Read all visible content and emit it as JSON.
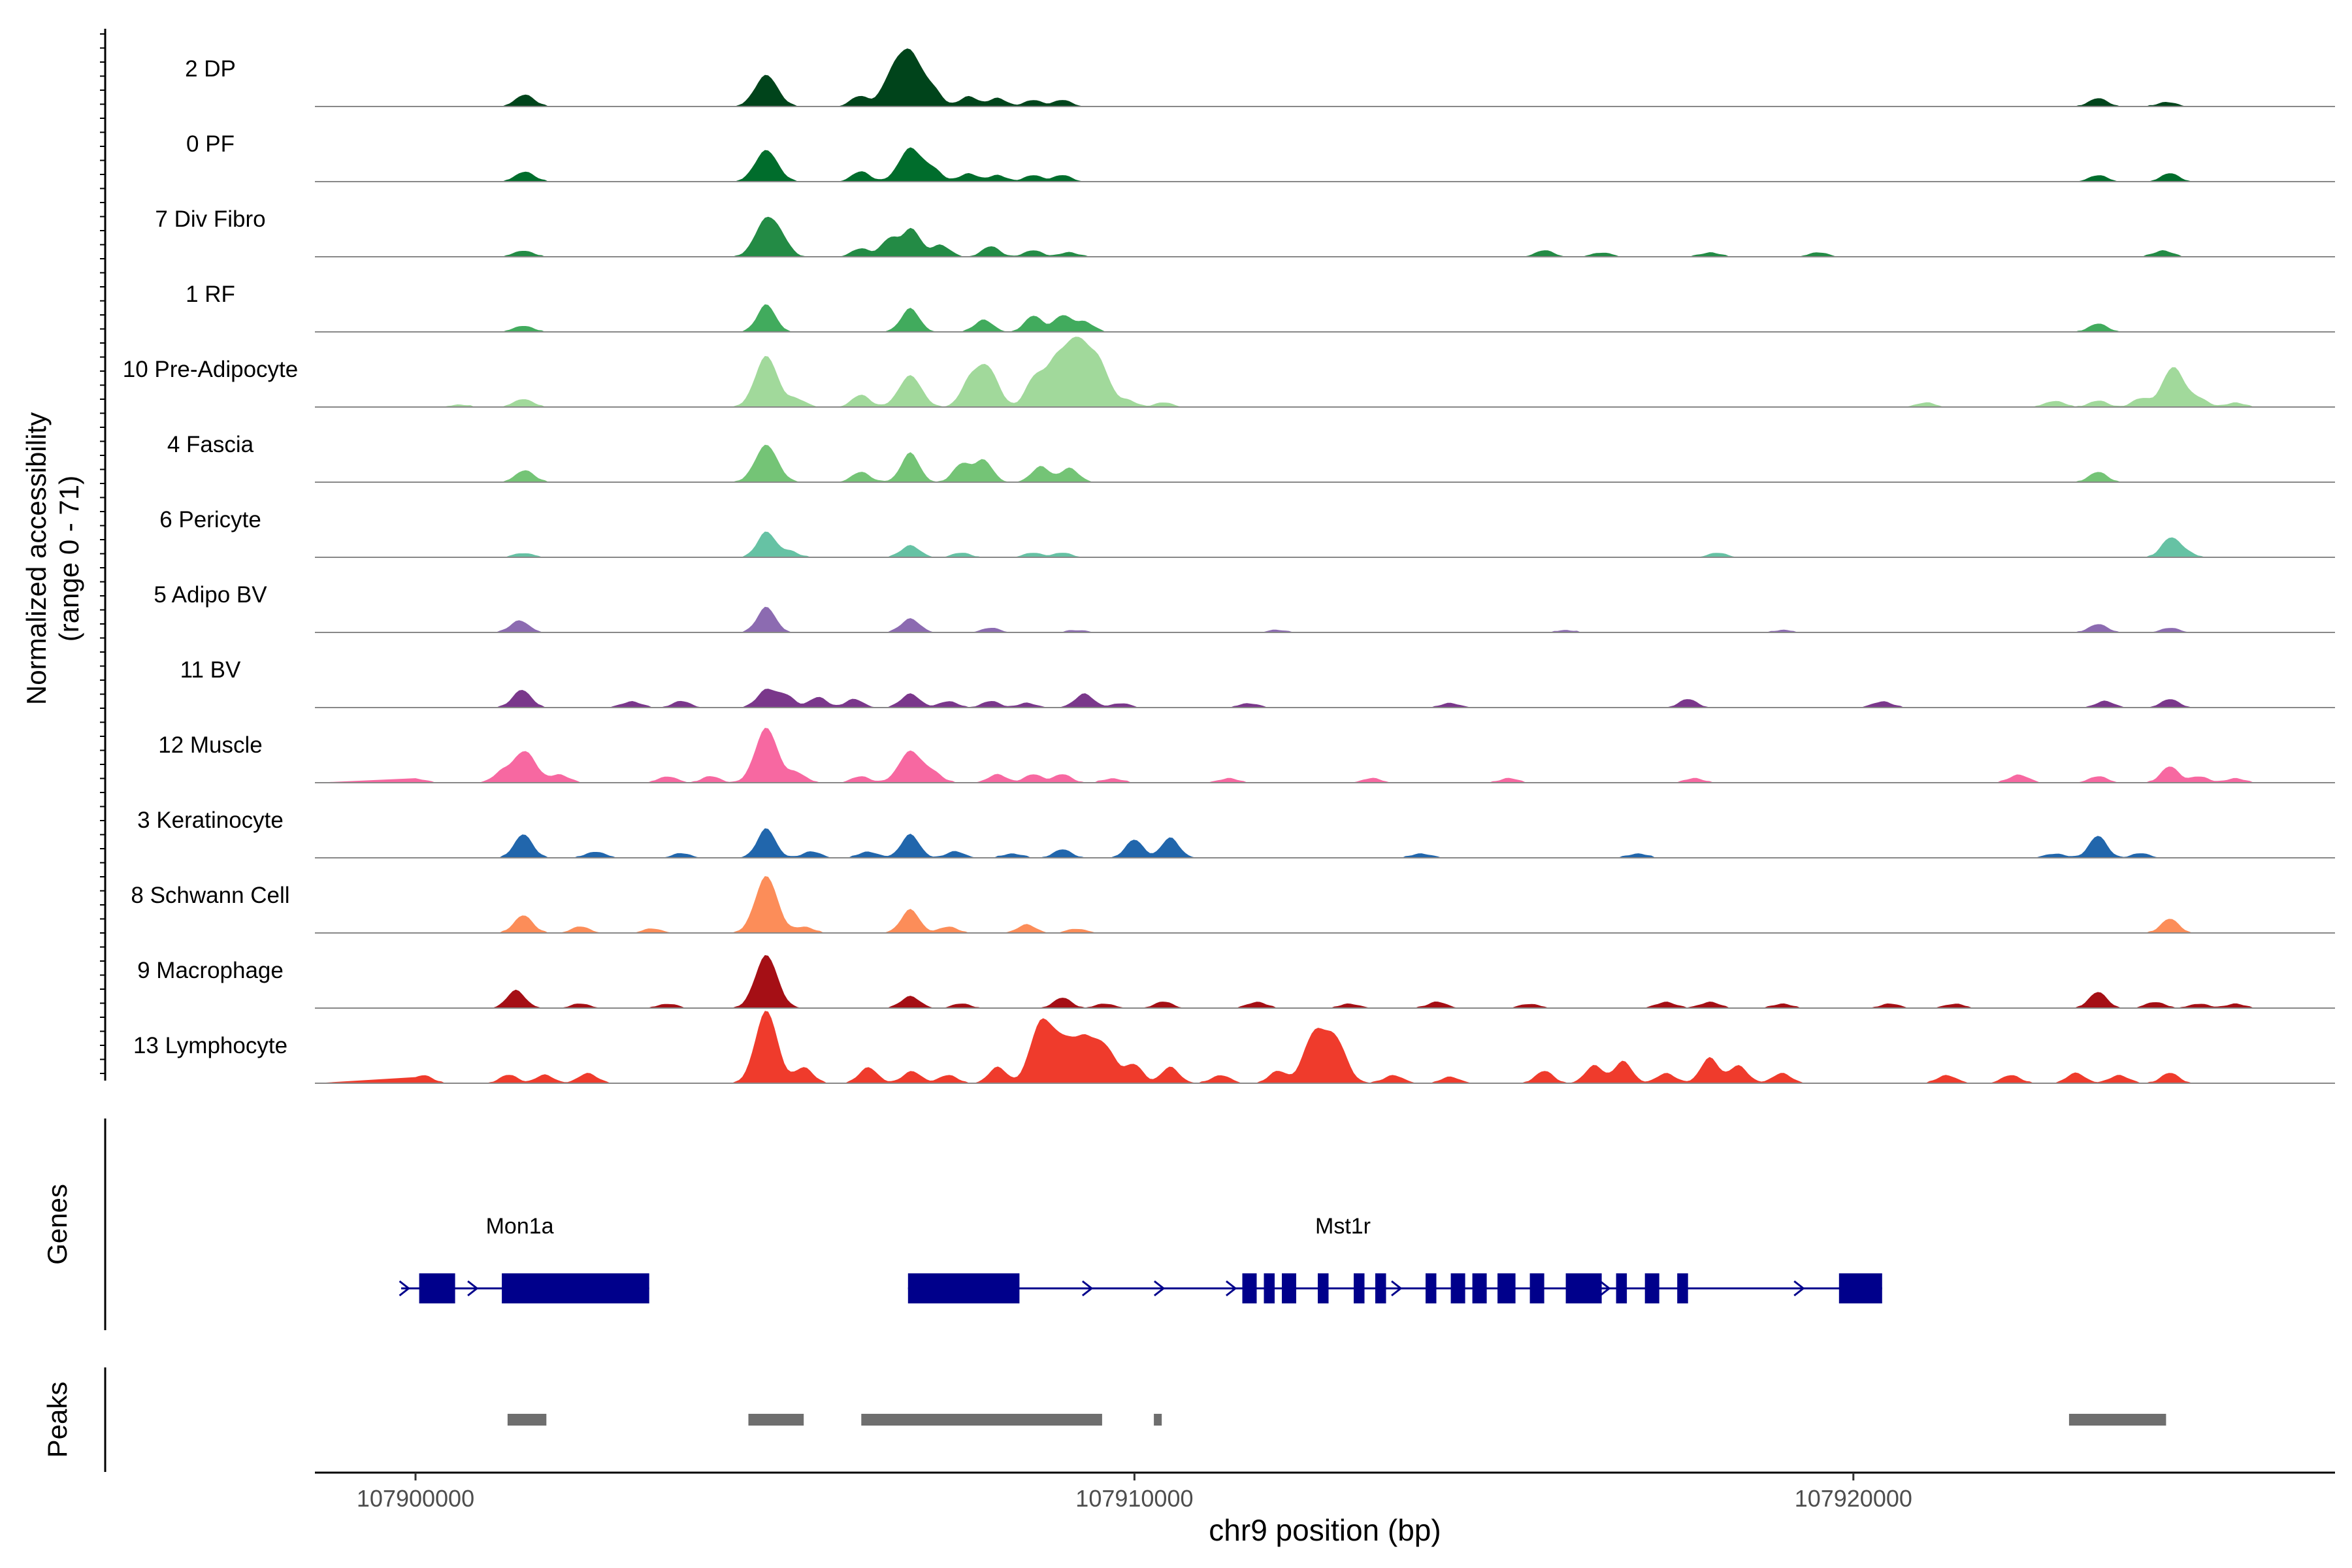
{
  "chart_data": {
    "type": "area",
    "title": "",
    "ylabel": "Normalized accessibility",
    "ylabel_range": "(range 0 - 71)",
    "ylim": [
      0,
      71
    ],
    "xlabel": "chr9 position (bp)",
    "xlim": [
      107898600,
      107926700
    ],
    "x_ticks": [
      "107900000",
      "107910000",
      "107920000"
    ],
    "x_tick_values": [
      107900000,
      107910000,
      107920000
    ],
    "baseline_color": "#888888",
    "tracks": [
      {
        "name": "2 DP",
        "color": "#00441b",
        "peaks": [
          [
            107901520,
            6
          ],
          [
            107904880,
            16
          ],
          [
            107906180,
            5
          ],
          [
            107906650,
            16
          ],
          [
            107906900,
            24
          ],
          [
            107907200,
            8
          ],
          [
            107907700,
            5
          ],
          [
            107908100,
            4
          ],
          [
            107908600,
            3
          ],
          [
            107909000,
            3
          ],
          [
            107923400,
            4
          ],
          [
            107924350,
            2
          ]
        ]
      },
      {
        "name": "0 PF",
        "color": "#006d2c",
        "peaks": [
          [
            107901520,
            5
          ],
          [
            107904880,
            16
          ],
          [
            107906200,
            5
          ],
          [
            107906880,
            17
          ],
          [
            107907200,
            6
          ],
          [
            107907700,
            4
          ],
          [
            107908100,
            3
          ],
          [
            107908600,
            3
          ],
          [
            107909000,
            3
          ],
          [
            107923400,
            3
          ],
          [
            107924400,
            4
          ]
        ]
      },
      {
        "name": "7 Div Fibro",
        "color": "#238b45",
        "peaks": [
          [
            107901500,
            3
          ],
          [
            107904880,
            19
          ],
          [
            107905100,
            6
          ],
          [
            107906200,
            4
          ],
          [
            107906600,
            9
          ],
          [
            107906900,
            14
          ],
          [
            107907300,
            6
          ],
          [
            107908000,
            5
          ],
          [
            107908600,
            3
          ],
          [
            107909100,
            2
          ],
          [
            107915700,
            3
          ],
          [
            107916500,
            2
          ],
          [
            107918000,
            2
          ],
          [
            107919500,
            2
          ],
          [
            107924300,
            3
          ]
        ]
      },
      {
        "name": "1 RF",
        "color": "#41ab5d",
        "peaks": [
          [
            107901500,
            3
          ],
          [
            107904880,
            14
          ],
          [
            107906880,
            12
          ],
          [
            107907900,
            6
          ],
          [
            107908600,
            8
          ],
          [
            107909000,
            8
          ],
          [
            107909300,
            5
          ],
          [
            107923400,
            4
          ]
        ]
      },
      {
        "name": "10 Pre-Adipocyte",
        "color": "#a1d99b",
        "peaks": [
          [
            107900600,
            1
          ],
          [
            107901500,
            4
          ],
          [
            107904880,
            26
          ],
          [
            107905300,
            4
          ],
          [
            107906200,
            6
          ],
          [
            107906880,
            16
          ],
          [
            107907700,
            11
          ],
          [
            107907950,
            20
          ],
          [
            107908600,
            13
          ],
          [
            107908900,
            22
          ],
          [
            107909200,
            30
          ],
          [
            107909500,
            22
          ],
          [
            107909900,
            3
          ],
          [
            107910400,
            2
          ],
          [
            107921000,
            2
          ],
          [
            107922800,
            3
          ],
          [
            107923400,
            3
          ],
          [
            107924000,
            4
          ],
          [
            107924450,
            20
          ],
          [
            107924800,
            4
          ],
          [
            107925300,
            2
          ]
        ]
      },
      {
        "name": "4 Fascia",
        "color": "#74c476",
        "peaks": [
          [
            107901520,
            6
          ],
          [
            107904880,
            19
          ],
          [
            107906200,
            5
          ],
          [
            107906880,
            15
          ],
          [
            107907600,
            9
          ],
          [
            107907900,
            11
          ],
          [
            107908700,
            8
          ],
          [
            107909100,
            7
          ],
          [
            107923400,
            5
          ]
        ]
      },
      {
        "name": "6 Pericyte",
        "color": "#66c2a4",
        "peaks": [
          [
            107901500,
            2
          ],
          [
            107904880,
            13
          ],
          [
            107905200,
            3
          ],
          [
            107906880,
            6
          ],
          [
            107907600,
            2
          ],
          [
            107908600,
            2
          ],
          [
            107909000,
            2
          ],
          [
            107918100,
            2
          ],
          [
            107924400,
            9
          ],
          [
            107924600,
            3
          ]
        ]
      },
      {
        "name": "5 Adipo BV",
        "color": "#8c6bb1",
        "peaks": [
          [
            107901450,
            6
          ],
          [
            107904880,
            13
          ],
          [
            107906880,
            7
          ],
          [
            107908000,
            2
          ],
          [
            107909200,
            1
          ],
          [
            107912000,
            1
          ],
          [
            107916000,
            1
          ],
          [
            107919000,
            1
          ],
          [
            107923400,
            4
          ],
          [
            107924400,
            2
          ]
        ]
      },
      {
        "name": "11 BV",
        "color": "#7a378b",
        "peaks": [
          [
            107901480,
            9
          ],
          [
            107903000,
            3
          ],
          [
            107903700,
            3
          ],
          [
            107904880,
            9
          ],
          [
            107905150,
            6
          ],
          [
            107905600,
            5
          ],
          [
            107906100,
            4
          ],
          [
            107906880,
            7
          ],
          [
            107907400,
            3
          ],
          [
            107908000,
            3
          ],
          [
            107908500,
            2
          ],
          [
            107909300,
            7
          ],
          [
            107909800,
            2
          ],
          [
            107911600,
            2
          ],
          [
            107914400,
            2
          ],
          [
            107917700,
            4
          ],
          [
            107920400,
            3
          ],
          [
            107923500,
            3
          ],
          [
            107924400,
            4
          ]
        ]
      },
      {
        "name": "12 Muscle",
        "color": "#f768a1",
        "peaks": [
          [
            107900000,
            2
          ],
          [
            107901200,
            5
          ],
          [
            107901520,
            16
          ],
          [
            107902000,
            4
          ],
          [
            107903500,
            3
          ],
          [
            107904100,
            3
          ],
          [
            107904880,
            28
          ],
          [
            107905300,
            5
          ],
          [
            107906200,
            3
          ],
          [
            107906880,
            16
          ],
          [
            107907200,
            5
          ],
          [
            107908100,
            4
          ],
          [
            107908600,
            4
          ],
          [
            107909000,
            4
          ],
          [
            107909700,
            2
          ],
          [
            107911300,
            2
          ],
          [
            107913300,
            2
          ],
          [
            107915200,
            2
          ],
          [
            107917800,
            2
          ],
          [
            107922300,
            4
          ],
          [
            107923400,
            3
          ],
          [
            107924400,
            8
          ],
          [
            107924800,
            3
          ],
          [
            107925300,
            2
          ]
        ]
      },
      {
        "name": "3 Keratinocyte",
        "color": "#2166ac",
        "peaks": [
          [
            107901500,
            12
          ],
          [
            107902500,
            3
          ],
          [
            107903700,
            2
          ],
          [
            107904880,
            15
          ],
          [
            107905500,
            3
          ],
          [
            107906300,
            3
          ],
          [
            107906880,
            12
          ],
          [
            107907500,
            3
          ],
          [
            107908300,
            2
          ],
          [
            107909000,
            4
          ],
          [
            107910000,
            9
          ],
          [
            107910500,
            10
          ],
          [
            107914000,
            2
          ],
          [
            107917000,
            2
          ],
          [
            107922800,
            2
          ],
          [
            107923400,
            11
          ],
          [
            107924000,
            2
          ]
        ]
      },
      {
        "name": "8 Schwann Cell",
        "color": "#fc8d59",
        "peaks": [
          [
            107901500,
            9
          ],
          [
            107902300,
            3
          ],
          [
            107903300,
            2
          ],
          [
            107904880,
            29
          ],
          [
            107905400,
            3
          ],
          [
            107906880,
            12
          ],
          [
            107907400,
            3
          ],
          [
            107908500,
            4
          ],
          [
            107909200,
            2
          ],
          [
            107924400,
            7
          ]
        ]
      },
      {
        "name": "9 Macrophage",
        "color": "#a50f15",
        "peaks": [
          [
            107901400,
            9
          ],
          [
            107902300,
            2
          ],
          [
            107903500,
            2
          ],
          [
            107904880,
            27
          ],
          [
            107906880,
            6
          ],
          [
            107907600,
            2
          ],
          [
            107909000,
            5
          ],
          [
            107909600,
            2
          ],
          [
            107910400,
            3
          ],
          [
            107911700,
            3
          ],
          [
            107913000,
            2
          ],
          [
            107914200,
            3
          ],
          [
            107915500,
            2
          ],
          [
            107917400,
            3
          ],
          [
            107918000,
            3
          ],
          [
            107919000,
            2
          ],
          [
            107920500,
            2
          ],
          [
            107921400,
            2
          ],
          [
            107923400,
            8
          ],
          [
            107924200,
            3
          ],
          [
            107924800,
            2
          ],
          [
            107925300,
            2
          ]
        ]
      },
      {
        "name": "13 Lymphocyte",
        "color": "#ef3b2c",
        "peaks": [
          [
            107900100,
            4
          ],
          [
            107901300,
            4
          ],
          [
            107901800,
            4
          ],
          [
            107902400,
            5
          ],
          [
            107904880,
            37
          ],
          [
            107905400,
            8
          ],
          [
            107906300,
            8
          ],
          [
            107906900,
            6
          ],
          [
            107907400,
            4
          ],
          [
            107908100,
            8
          ],
          [
            107908700,
            30
          ],
          [
            107909000,
            18
          ],
          [
            107909300,
            20
          ],
          [
            107909600,
            17
          ],
          [
            107910000,
            9
          ],
          [
            107910500,
            8
          ],
          [
            107911200,
            4
          ],
          [
            107912000,
            6
          ],
          [
            107912500,
            24
          ],
          [
            107912800,
            21
          ],
          [
            107913600,
            4
          ],
          [
            107914400,
            3
          ],
          [
            107915700,
            6
          ],
          [
            107916400,
            9
          ],
          [
            107916800,
            11
          ],
          [
            107917400,
            5
          ],
          [
            107918000,
            13
          ],
          [
            107918400,
            9
          ],
          [
            107919000,
            5
          ],
          [
            107921300,
            4
          ],
          [
            107922200,
            4
          ],
          [
            107923100,
            5
          ],
          [
            107923700,
            4
          ],
          [
            107924400,
            5
          ]
        ]
      }
    ],
    "genes_panel_label": "Genes",
    "genes": [
      {
        "name": "Mon1a",
        "start": 107899800,
        "end": 107903250,
        "exons": [
          [
            107900050,
            107900550
          ],
          [
            107901200,
            107903250
          ]
        ],
        "arrows": [
          107899850,
          107900800
        ]
      },
      {
        "name": "Mst1r",
        "start": 107906850,
        "end": 107920400,
        "exons": [
          [
            107906850,
            107908400
          ],
          [
            107911500,
            107911700
          ],
          [
            107911800,
            107911950
          ],
          [
            107912050,
            107912250
          ],
          [
            107912550,
            107912700
          ],
          [
            107913050,
            107913200
          ],
          [
            107913350,
            107913500
          ],
          [
            107914050,
            107914200
          ],
          [
            107914400,
            107914600
          ],
          [
            107914700,
            107914900
          ],
          [
            107915050,
            107915300
          ],
          [
            107915500,
            107915700
          ],
          [
            107916000,
            107916500
          ],
          [
            107916700,
            107916850
          ],
          [
            107917100,
            107917300
          ],
          [
            107917550,
            107917700
          ],
          [
            107919800,
            107920400
          ]
        ],
        "arrows": [
          107906950,
          107909350,
          107910350,
          107911350,
          107913650,
          107916550,
          107919250
        ]
      }
    ],
    "gene_color": "#00008b",
    "peaks_panel_label": "Peaks",
    "peaks_color": "#6e6e6e",
    "peak_regions": [
      [
        107901280,
        107901820
      ],
      [
        107904630,
        107905400
      ],
      [
        107906200,
        107909550
      ],
      [
        107910270,
        107910380
      ],
      [
        107923000,
        107924350
      ]
    ]
  }
}
